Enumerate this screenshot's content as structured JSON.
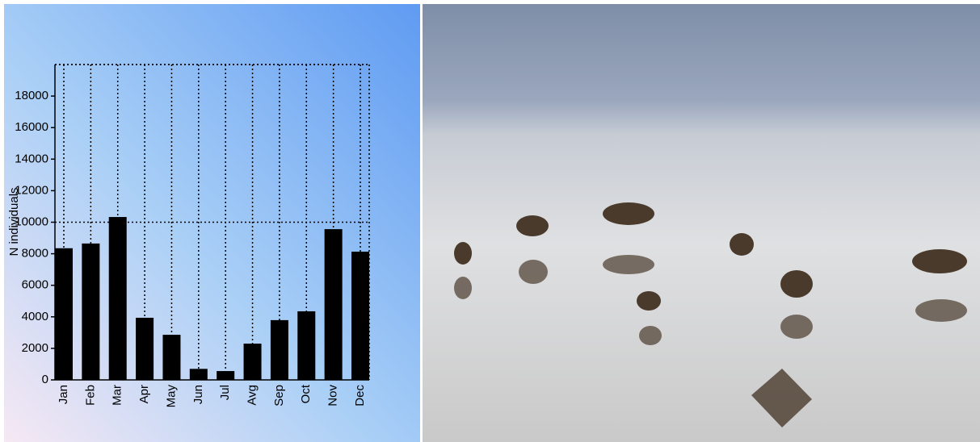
{
  "chart_data": {
    "type": "bar",
    "y_label": "N individuals",
    "categories": [
      "Jan",
      "Feb",
      "Mar",
      "Apr",
      "May",
      "Jun",
      "Jul",
      "Avg",
      "Sep",
      "Oct",
      "Nov",
      "Dec"
    ],
    "values": [
      8350,
      8650,
      10330,
      3940,
      2860,
      700,
      560,
      2300,
      3790,
      4350,
      9560,
      8130
    ],
    "color": "#000000",
    "ylim": [
      0,
      20000
    ],
    "yticks": [
      0,
      2000,
      4000,
      6000,
      8000,
      10000,
      12000,
      14000,
      16000,
      18000
    ],
    "grid": true,
    "grid_y": [
      10000,
      20000
    ]
  }
}
